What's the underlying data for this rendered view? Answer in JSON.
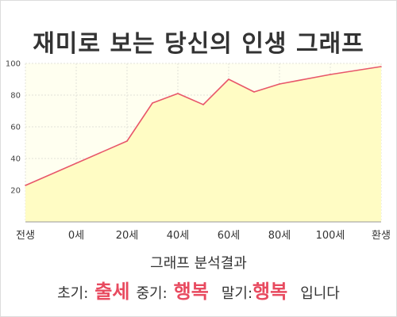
{
  "title": "재미로 보는 당신의 인생 그래프",
  "chart_data": {
    "type": "area",
    "x_categories": [
      "전생",
      "0세",
      "20세",
      "40세",
      "60세",
      "80세",
      "100세",
      "환생"
    ],
    "x_positions": [
      -20,
      0,
      20,
      40,
      60,
      80,
      100,
      120
    ],
    "points": [
      {
        "x": -20,
        "y": 23
      },
      {
        "x": 20,
        "y": 51
      },
      {
        "x": 30,
        "y": 75
      },
      {
        "x": 40,
        "y": 81
      },
      {
        "x": 50,
        "y": 74
      },
      {
        "x": 60,
        "y": 90
      },
      {
        "x": 70,
        "y": 82
      },
      {
        "x": 80,
        "y": 87
      },
      {
        "x": 100,
        "y": 93
      },
      {
        "x": 120,
        "y": 98
      }
    ],
    "xlim": [
      -20,
      120
    ],
    "ylim": [
      0,
      100
    ],
    "y_ticks": [
      20,
      40,
      60,
      80,
      100
    ],
    "grid": true,
    "line_color": "#e8576a",
    "fill_color": "#fffcc4"
  },
  "analysis": {
    "heading": "그래프 분석결과",
    "early_label": "초기:",
    "early_value": "출세",
    "mid_label": "중기:",
    "mid_value": "행복",
    "late_label": "말기:",
    "late_value": "행복",
    "suffix": "입니다"
  }
}
